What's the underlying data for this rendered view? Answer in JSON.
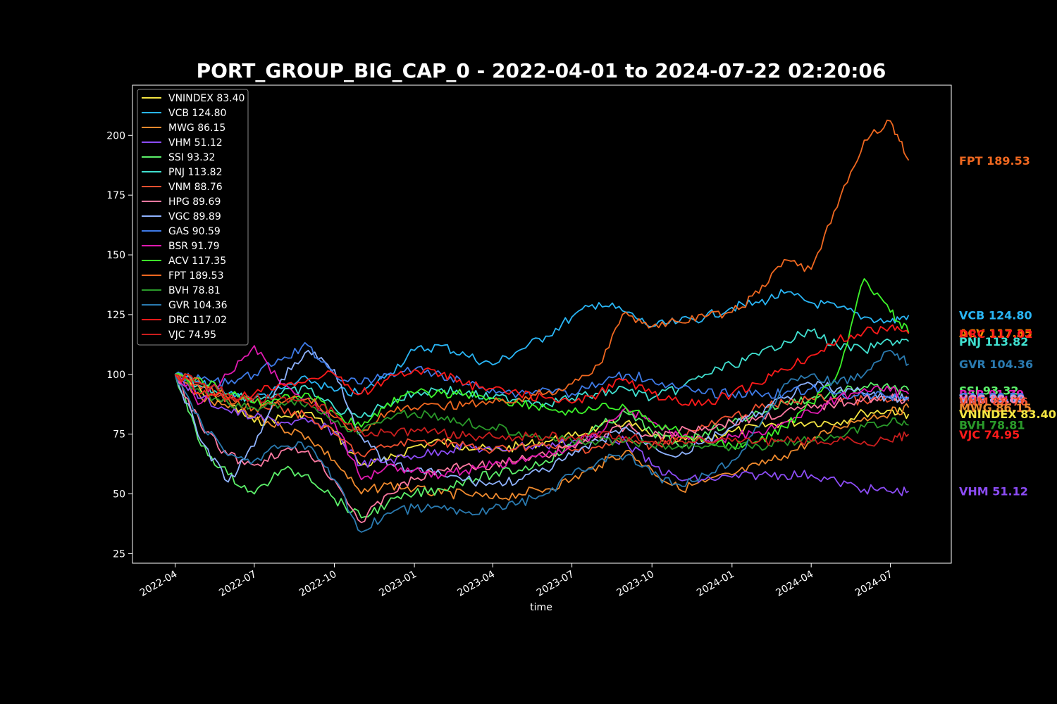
{
  "chart_data": {
    "type": "line",
    "title": "PORT_GROUP_BIG_CAP_0 - 2022-04-01 to 2024-07-22 02:20:06",
    "xlabel": "time",
    "ylabel": "",
    "x_range": [
      "2022-02-11",
      "2024-09-09"
    ],
    "ylim": [
      21,
      221
    ],
    "x_ticks": [
      "2022-04",
      "2022-07",
      "2022-10",
      "2023-01",
      "2023-04",
      "2023-07",
      "2023-10",
      "2024-01",
      "2024-04",
      "2024-07"
    ],
    "y_ticks": [
      25,
      50,
      75,
      100,
      125,
      150,
      175,
      200
    ],
    "grid": false,
    "legend_position": "upper-left",
    "x": [
      "2022-04-01",
      "2022-05-01",
      "2022-06-01",
      "2022-07-01",
      "2022-08-01",
      "2022-09-01",
      "2022-10-01",
      "2022-11-01",
      "2022-12-01",
      "2023-01-01",
      "2023-02-01",
      "2023-03-01",
      "2023-04-01",
      "2023-05-01",
      "2023-06-01",
      "2023-07-01",
      "2023-08-01",
      "2023-09-01",
      "2023-10-01",
      "2023-11-01",
      "2023-12-01",
      "2024-01-01",
      "2024-02-01",
      "2024-03-01",
      "2024-04-01",
      "2024-05-01",
      "2024-06-01",
      "2024-07-01",
      "2024-07-22"
    ],
    "series": [
      {
        "name": "VNINDEX",
        "label": "VNINDEX 83.40",
        "color": "#f5e642",
        "values": [
          100,
          93,
          88,
          80,
          82,
          84,
          76,
          62,
          64,
          70,
          72,
          70,
          68,
          70,
          72,
          74,
          78,
          80,
          74,
          72,
          73,
          76,
          78,
          80,
          80,
          80,
          84,
          85,
          83.4
        ]
      },
      {
        "name": "VCB",
        "label": "VCB 124.80",
        "color": "#29b6f6",
        "values": [
          100,
          96,
          92,
          90,
          94,
          98,
          93,
          92,
          100,
          110,
          112,
          108,
          104,
          110,
          116,
          124,
          130,
          126,
          120,
          122,
          124,
          128,
          130,
          134,
          130,
          128,
          124,
          122,
          124.8
        ]
      },
      {
        "name": "MWG",
        "label": "MWG 86.15",
        "color": "#ef8a2e",
        "values": [
          100,
          90,
          86,
          82,
          78,
          74,
          64,
          50,
          54,
          52,
          50,
          50,
          48,
          50,
          52,
          56,
          62,
          68,
          60,
          52,
          55,
          58,
          62,
          66,
          72,
          78,
          82,
          84,
          86.15
        ]
      },
      {
        "name": "VHM",
        "label": "VHM 51.12",
        "color": "#8c4cf5",
        "values": [
          100,
          90,
          85,
          82,
          80,
          80,
          76,
          62,
          64,
          66,
          68,
          70,
          68,
          70,
          70,
          72,
          74,
          72,
          62,
          56,
          56,
          57,
          58,
          58,
          58,
          55,
          52,
          51,
          51.12
        ]
      },
      {
        "name": "SSI",
        "label": "SSI 93.32",
        "color": "#5cf06a",
        "values": [
          100,
          70,
          58,
          50,
          60,
          58,
          48,
          40,
          46,
          50,
          52,
          56,
          58,
          60,
          64,
          70,
          78,
          84,
          76,
          70,
          76,
          80,
          84,
          88,
          90,
          92,
          95,
          94,
          93.32
        ]
      },
      {
        "name": "PNJ",
        "label": "PNJ 113.82",
        "color": "#40e0d0",
        "values": [
          100,
          95,
          92,
          90,
          92,
          94,
          86,
          82,
          88,
          92,
          94,
          92,
          90,
          90,
          88,
          90,
          92,
          94,
          90,
          94,
          100,
          104,
          108,
          114,
          118,
          112,
          110,
          114,
          113.82
        ]
      },
      {
        "name": "VNM",
        "label": "VNM 88.76",
        "color": "#f05030",
        "values": [
          100,
          94,
          90,
          88,
          86,
          82,
          75,
          66,
          70,
          72,
          72,
          70,
          68,
          70,
          70,
          68,
          70,
          72,
          70,
          74,
          78,
          82,
          86,
          88,
          90,
          90,
          89,
          89,
          88.76
        ]
      },
      {
        "name": "HPG",
        "label": "HPG 89.69",
        "color": "#ff7aa2",
        "values": [
          100,
          78,
          66,
          62,
          68,
          68,
          56,
          38,
          50,
          56,
          60,
          62,
          62,
          64,
          66,
          70,
          74,
          78,
          74,
          76,
          78,
          80,
          82,
          84,
          86,
          88,
          90,
          90,
          89.69
        ]
      },
      {
        "name": "VGC",
        "label": "VGC 89.89",
        "color": "#8fb3ff",
        "values": [
          100,
          72,
          55,
          70,
          98,
          110,
          102,
          74,
          62,
          60,
          58,
          56,
          54,
          56,
          60,
          66,
          72,
          78,
          70,
          66,
          72,
          78,
          84,
          90,
          96,
          94,
          92,
          90,
          89.89
        ]
      },
      {
        "name": "GAS",
        "label": "GAS 90.59",
        "color": "#3e7be8",
        "values": [
          100,
          98,
          96,
          100,
          106,
          112,
          100,
          96,
          100,
          102,
          100,
          96,
          94,
          92,
          94,
          92,
          96,
          100,
          98,
          94,
          92,
          92,
          92,
          92,
          94,
          92,
          91,
          91,
          90.59
        ]
      },
      {
        "name": "BSR",
        "label": "BSR 91.79",
        "color": "#e01ab0",
        "values": [
          100,
          88,
          100,
          112,
          96,
          90,
          80,
          56,
          62,
          60,
          58,
          60,
          62,
          64,
          66,
          70,
          76,
          86,
          80,
          74,
          72,
          74,
          76,
          80,
          84,
          90,
          94,
          93,
          91.79
        ]
      },
      {
        "name": "ACV",
        "label": "ACV 117.35",
        "color": "#3df52a",
        "values": [
          100,
          98,
          92,
          88,
          90,
          92,
          84,
          78,
          88,
          92,
          92,
          92,
          90,
          88,
          86,
          84,
          86,
          86,
          80,
          76,
          72,
          70,
          72,
          78,
          88,
          100,
          140,
          126,
          117.35
        ]
      },
      {
        "name": "FPT",
        "label": "FPT 189.53",
        "color": "#f06820",
        "values": [
          100,
          96,
          90,
          86,
          88,
          90,
          82,
          76,
          84,
          86,
          86,
          88,
          88,
          90,
          92,
          96,
          104,
          126,
          120,
          122,
          124,
          126,
          134,
          148,
          144,
          170,
          198,
          206,
          189.53
        ]
      },
      {
        "name": "BVH",
        "label": "BVH 78.81",
        "color": "#2a9a2a",
        "values": [
          100,
          92,
          88,
          86,
          88,
          88,
          80,
          76,
          82,
          84,
          82,
          80,
          78,
          76,
          74,
          72,
          72,
          72,
          70,
          70,
          70,
          70,
          70,
          72,
          72,
          74,
          78,
          80,
          78.81
        ]
      },
      {
        "name": "GVR",
        "label": "GVR 104.36",
        "color": "#2a7ab0",
        "values": [
          100,
          80,
          66,
          64,
          70,
          70,
          56,
          34,
          42,
          44,
          44,
          42,
          44,
          46,
          50,
          58,
          64,
          66,
          58,
          54,
          58,
          64,
          78,
          96,
          100,
          96,
          100,
          110,
          104.36
        ]
      },
      {
        "name": "DRC",
        "label": "DRC 117.02",
        "color": "#ff1a1a",
        "values": [
          100,
          92,
          90,
          92,
          96,
          98,
          100,
          92,
          98,
          102,
          100,
          96,
          94,
          92,
          90,
          88,
          92,
          98,
          92,
          88,
          88,
          92,
          96,
          102,
          108,
          114,
          118,
          120,
          117.02
        ]
      },
      {
        "name": "VJC",
        "label": "VJC 74.95",
        "color": "#cc1e1e",
        "values": [
          100,
          96,
          92,
          90,
          90,
          88,
          84,
          76,
          76,
          76,
          76,
          74,
          74,
          74,
          74,
          74,
          74,
          74,
          72,
          72,
          72,
          72,
          72,
          72,
          72,
          72,
          72,
          72,
          74.95
        ]
      }
    ],
    "end_labels": [
      {
        "text": "FPT 189.53",
        "color": "#f06820"
      },
      {
        "text": "VCB 124.80",
        "color": "#29b6f6"
      },
      {
        "text": "ACV 117.35",
        "color": "#f08a00"
      },
      {
        "text": "DRC 117.02",
        "color": "#ff1a1a"
      },
      {
        "text": "PNJ 113.82",
        "color": "#40e0d0"
      },
      {
        "text": "GVR 104.36",
        "color": "#2a7ab0"
      },
      {
        "text": "SSI 93.32",
        "color": "#5cf06a"
      },
      {
        "text": "BSR 91.79",
        "color": "#e01ab0"
      },
      {
        "text": "GAS 90.59",
        "color": "#3e7be8"
      },
      {
        "text": "VGC 89.89",
        "color": "#8fb3ff"
      },
      {
        "text": "HPG 89.69",
        "color": "#ff7aa2"
      },
      {
        "text": "VNM 88.76",
        "color": "#f05030"
      },
      {
        "text": "MWG 86.15",
        "color": "#ef8a2e"
      },
      {
        "text": "VNINDEX 83.40",
        "color": "#f5e642"
      },
      {
        "text": "BVH 78.81",
        "color": "#2a9a2a"
      },
      {
        "text": "VJC 74.95",
        "color": "#ff1a1a"
      },
      {
        "text": "VHM 51.12",
        "color": "#8c4cf5"
      }
    ]
  }
}
